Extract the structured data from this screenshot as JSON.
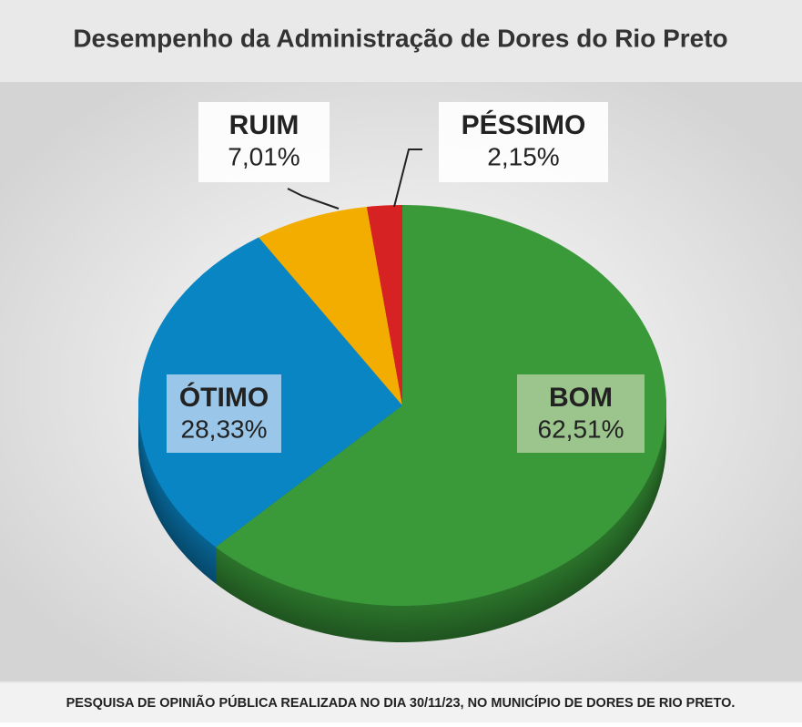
{
  "chart_data": {
    "type": "pie",
    "title": "Desempenho da Administração de Dores do Rio Preto",
    "categories": [
      "BOM",
      "ÓTIMO",
      "RUIM",
      "PÉSSIMO"
    ],
    "values": [
      62.51,
      28.33,
      7.01,
      2.15
    ],
    "value_labels": [
      "62,51%",
      "28,33%",
      "7,01%",
      "2,15%"
    ],
    "colors": [
      "#3a9a3a",
      "#0a85c4",
      "#f2ad00",
      "#d62222"
    ],
    "note": "PESQUISA DE OPINIÃO PÚBLICA REALIZADA NO DIA 30/11/23, NO MUNICÍPIO DE DORES DE RIO PRETO."
  }
}
